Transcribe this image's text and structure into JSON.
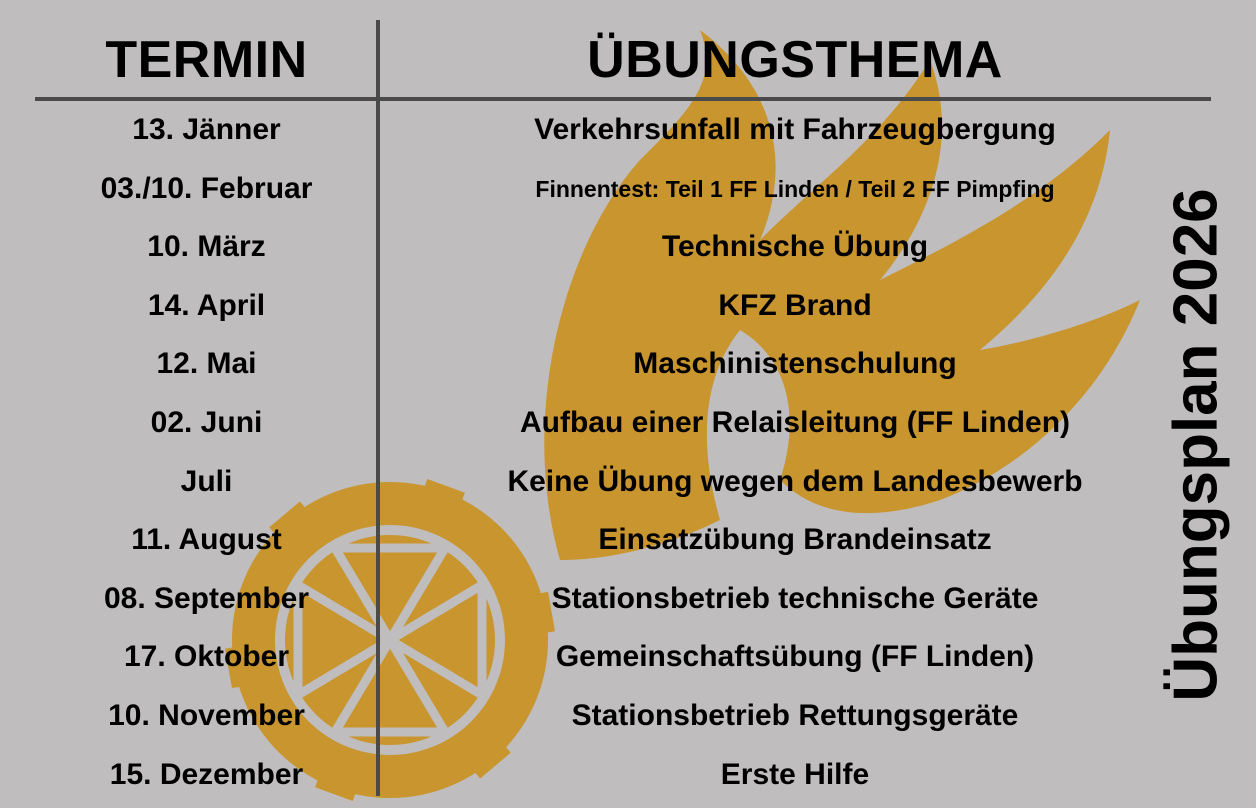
{
  "colors": {
    "background": "#bfbdbe",
    "watermark": "#c9952e",
    "lines": "#4a4a4a"
  },
  "watermark_icons": [
    "flame-icon",
    "gear-icon"
  ],
  "side_title": "Übungsplan 2026",
  "header": {
    "date_col": "TERMIN",
    "topic_col": "ÜBUNGSTHEMA"
  },
  "rows": [
    {
      "date": "13. Jänner",
      "topic": "Verkehrsunfall mit Fahrzeugbergung"
    },
    {
      "date": "03./10. Februar",
      "topic": "Finnentest: Teil 1 FF Linden / Teil 2 FF Pimpfing"
    },
    {
      "date": "10. März",
      "topic": "Technische Übung"
    },
    {
      "date": "14. April",
      "topic": "KFZ Brand"
    },
    {
      "date": "12. Mai",
      "topic": "Maschinistenschulung"
    },
    {
      "date": "02. Juni",
      "topic": "Aufbau einer Relaisleitung (FF Linden)"
    },
    {
      "date": "Juli",
      "topic": "Keine Übung wegen dem Landesbewerb"
    },
    {
      "date": "11. August",
      "topic": "Einsatzübung Brandeinsatz"
    },
    {
      "date": "08. September",
      "topic": "Stationsbetrieb technische Geräte"
    },
    {
      "date": "17. Oktober",
      "topic": "Gemeinschaftsübung (FF Linden)"
    },
    {
      "date": "10. November",
      "topic": "Stationsbetrieb Rettungsgeräte"
    },
    {
      "date": "15. Dezember",
      "topic": "Erste Hilfe"
    }
  ]
}
